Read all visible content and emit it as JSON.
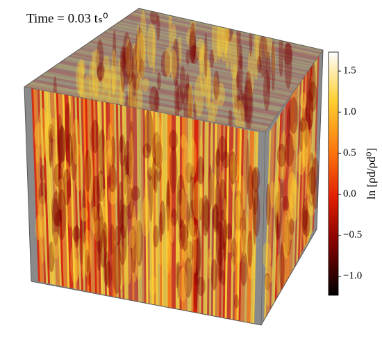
{
  "chart_data": {
    "type": "volume",
    "title": "Time = 0.03 tₛ⁰",
    "colorbar_label": "ln [ρd/ρd⁰]",
    "colormap": [
      "#000000",
      "#7a0000",
      "#e01e00",
      "#ff7a10",
      "#ffd030",
      "#ffffff"
    ],
    "clim": [
      -1.23,
      1.73
    ],
    "cticks": [
      {
        "value": -1,
        "label": "−1.0"
      },
      {
        "value": -0.5,
        "label": "−0.5"
      },
      {
        "value": 0,
        "label": "0.0"
      },
      {
        "value": 0.5,
        "label": "0.5"
      },
      {
        "value": 1,
        "label": "1.0"
      },
      {
        "value": 1.5,
        "label": "1.5"
      }
    ]
  }
}
